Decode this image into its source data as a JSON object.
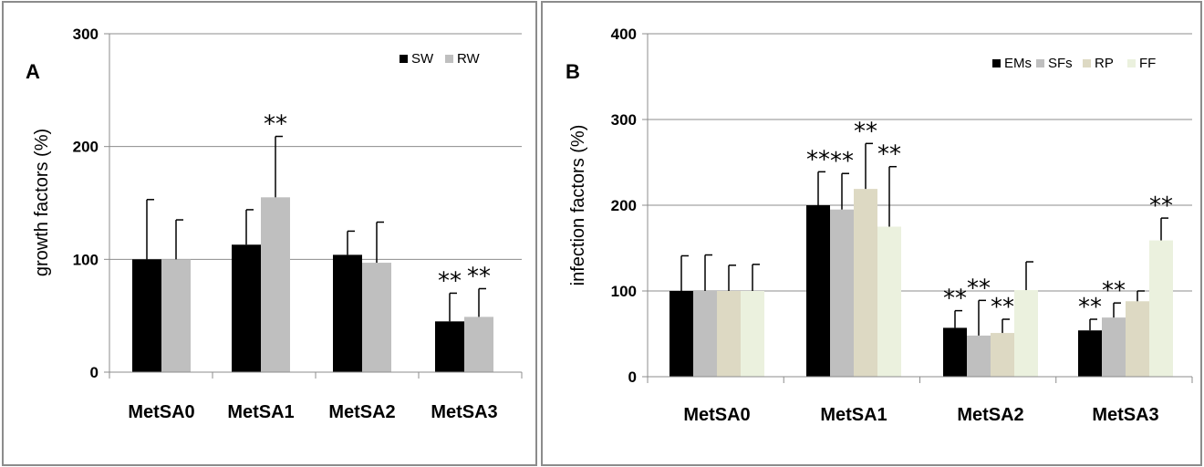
{
  "chart_data": [
    {
      "type": "bar",
      "panel_label": "A",
      "ylabel": "growth factors (%)",
      "ylim": [
        0,
        300
      ],
      "yticks": [
        0,
        100,
        200,
        300
      ],
      "categories": [
        "MetSA0",
        "MetSA1",
        "MetSA2",
        "MetSA3"
      ],
      "grid": true,
      "legend_position": "top-right",
      "series": [
        {
          "name": "SW",
          "color": "#000000",
          "values": [
            100,
            113,
            104,
            45
          ],
          "errors": [
            53,
            31,
            21,
            25
          ],
          "significance": [
            "",
            "",
            "",
            "**"
          ]
        },
        {
          "name": "RW",
          "color": "#bfbfbf",
          "values": [
            100,
            155,
            97,
            49
          ],
          "errors": [
            35,
            54,
            36,
            25
          ],
          "significance": [
            "",
            "**",
            "",
            "**"
          ]
        }
      ]
    },
    {
      "type": "bar",
      "panel_label": "B",
      "ylabel": "infection factors (%)",
      "ylim": [
        0,
        400
      ],
      "yticks": [
        0,
        100,
        200,
        300,
        400
      ],
      "categories": [
        "MetSA0",
        "MetSA1",
        "MetSA2",
        "MetSA3"
      ],
      "grid": true,
      "legend_position": "top-right",
      "series": [
        {
          "name": "EMs",
          "color": "#000000",
          "values": [
            100,
            200,
            57,
            54
          ],
          "errors": [
            41,
            39,
            20,
            13
          ],
          "significance": [
            "",
            "**",
            "**",
            "**"
          ]
        },
        {
          "name": "SFs",
          "color": "#bfbfbf",
          "values": [
            100,
            195,
            48,
            69
          ],
          "errors": [
            42,
            42,
            41,
            17
          ],
          "significance": [
            "",
            "**",
            "**",
            "**"
          ]
        },
        {
          "name": "RP",
          "color": "#ddd9c3",
          "values": [
            100,
            219,
            51,
            88
          ],
          "errors": [
            30,
            53,
            16,
            12
          ],
          "significance": [
            "",
            "**",
            "**",
            ""
          ]
        },
        {
          "name": "FF",
          "color": "#ebf1de",
          "values": [
            100,
            175,
            101,
            159
          ],
          "errors": [
            31,
            70,
            33,
            26
          ],
          "significance": [
            "",
            "**",
            "",
            "**"
          ]
        }
      ]
    }
  ]
}
